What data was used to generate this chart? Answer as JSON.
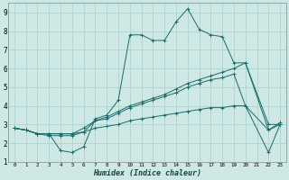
{
  "xlabel": "Humidex (Indice chaleur)",
  "bg_color": "#cde8e5",
  "grid_color": "#aacfcc",
  "line_color": "#1a6b6b",
  "lines": [
    [
      0,
      2.8,
      1,
      2.7,
      2,
      2.5,
      3,
      2.5,
      4,
      1.6,
      5,
      1.5,
      6,
      1.8,
      7,
      3.3,
      8,
      3.5,
      9,
      4.3,
      10,
      7.8,
      11,
      7.8,
      12,
      7.5,
      13,
      7.5,
      14,
      8.5,
      15,
      9.2,
      16,
      8.1,
      17,
      7.8,
      18,
      7.7,
      19,
      6.3,
      20,
      6.3,
      22,
      2.7,
      23,
      3.1
    ],
    [
      0,
      2.8,
      1,
      2.7,
      2,
      2.5,
      3,
      2.4,
      4,
      2.4,
      5,
      2.4,
      6,
      2.6,
      7,
      3.2,
      8,
      3.3,
      9,
      3.6,
      10,
      3.9,
      11,
      4.1,
      12,
      4.3,
      13,
      4.5,
      14,
      4.7,
      15,
      5.0,
      16,
      5.2,
      17,
      5.4,
      18,
      5.5,
      19,
      5.7,
      20,
      4.0,
      22,
      2.7,
      23,
      3.0
    ],
    [
      0,
      2.8,
      1,
      2.7,
      2,
      2.5,
      3,
      2.5,
      4,
      2.5,
      5,
      2.5,
      6,
      2.8,
      7,
      3.2,
      8,
      3.4,
      9,
      3.7,
      10,
      4.0,
      11,
      4.2,
      12,
      4.4,
      13,
      4.6,
      14,
      4.9,
      15,
      5.2,
      16,
      5.4,
      17,
      5.6,
      18,
      5.8,
      19,
      6.0,
      20,
      6.3,
      22,
      3.0,
      23,
      3.0
    ],
    [
      0,
      2.8,
      1,
      2.7,
      2,
      2.5,
      3,
      2.5,
      4,
      2.5,
      5,
      2.5,
      6,
      2.6,
      7,
      2.8,
      8,
      2.9,
      9,
      3.0,
      10,
      3.2,
      11,
      3.3,
      12,
      3.4,
      13,
      3.5,
      14,
      3.6,
      15,
      3.7,
      16,
      3.8,
      17,
      3.9,
      18,
      3.9,
      19,
      4.0,
      20,
      4.0,
      22,
      1.5,
      23,
      3.0
    ]
  ],
  "xlim": [
    -0.5,
    23.5
  ],
  "ylim": [
    1,
    9.5
  ],
  "xtick_labels": [
    "0",
    "1",
    "2",
    "3",
    "4",
    "5",
    "6",
    "7",
    "8",
    "9",
    "10",
    "11",
    "12",
    "13",
    "14",
    "15",
    "16",
    "17",
    "18",
    "19",
    "20",
    "21",
    "22",
    "23"
  ],
  "xticks": [
    0,
    1,
    2,
    3,
    4,
    5,
    6,
    7,
    8,
    9,
    10,
    11,
    12,
    13,
    14,
    15,
    16,
    17,
    18,
    19,
    20,
    21,
    22,
    23
  ],
  "yticks": [
    1,
    2,
    3,
    4,
    5,
    6,
    7,
    8,
    9
  ]
}
